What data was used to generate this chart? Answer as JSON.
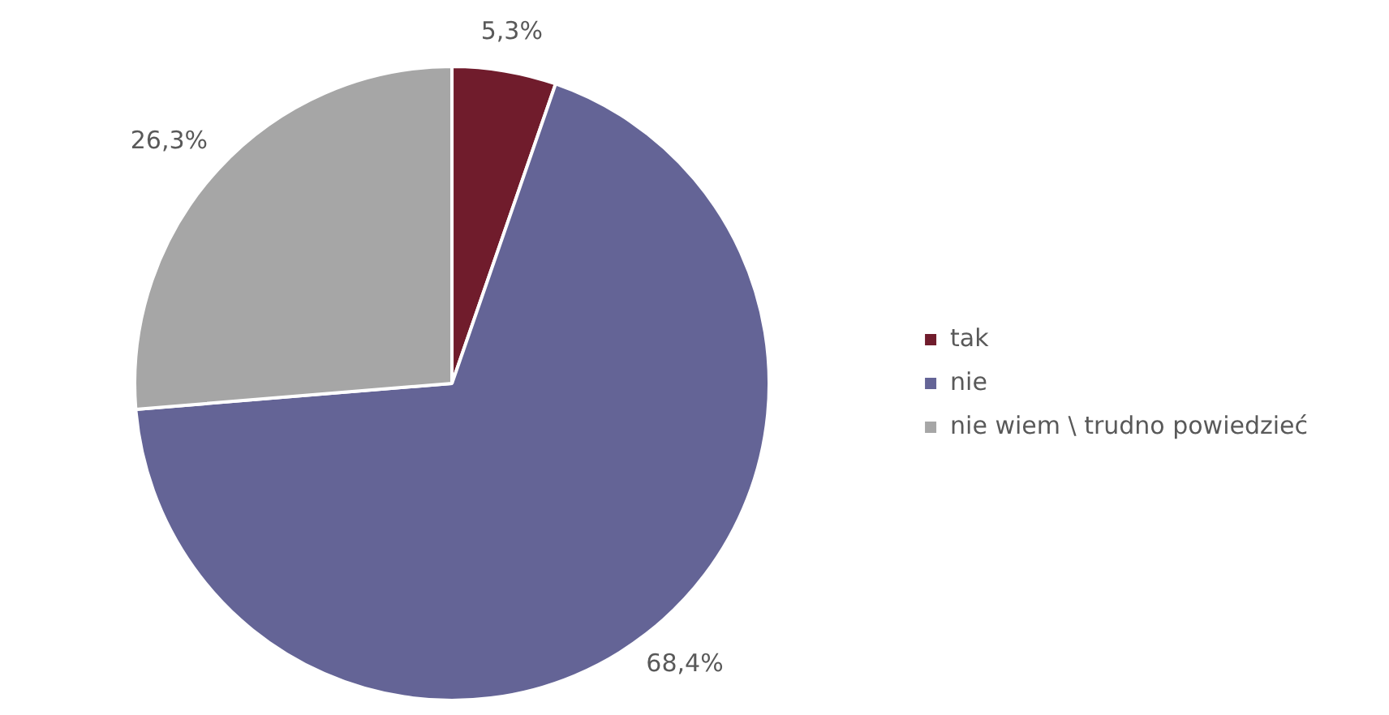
{
  "chart_data": {
    "type": "pie",
    "categories": [
      "tak",
      "nie",
      "nie wiem \\ trudno powiedzieć"
    ],
    "values": [
      5.3,
      68.4,
      26.3
    ],
    "colors": [
      "#701c2c",
      "#646496",
      "#a6a6a6"
    ],
    "value_labels": [
      "5,3%",
      "68,4%",
      "26,3%"
    ],
    "legend": "right"
  }
}
